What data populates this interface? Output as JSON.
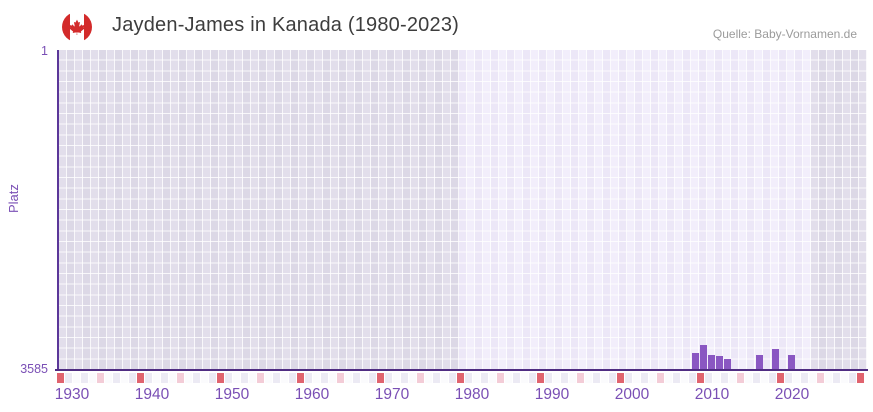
{
  "header": {
    "title": "Jayden-James in Kanada (1980-2023)",
    "source": "Quelle: Baby-Vornamen.de",
    "flag_icon": "canada-flag"
  },
  "chart_data": {
    "type": "bar",
    "title": "Jayden-James in Kanada (1980-2023)",
    "xlabel": "",
    "ylabel": "Platz",
    "y_axis": {
      "tick_labels": [
        "1",
        "3585"
      ],
      "best": 1,
      "worst": 3585,
      "inverted": true
    },
    "x_axis": {
      "first_year": 1930,
      "last_year": 2030,
      "tick_years": [
        1930,
        1940,
        1950,
        1960,
        1970,
        1980,
        1990,
        2000,
        2010,
        2020
      ]
    },
    "highlight_year_range": [
      1980,
      2023
    ],
    "values": [
      {
        "year": 2009,
        "platz": 3390
      },
      {
        "year": 2010,
        "platz": 3300
      },
      {
        "year": 2011,
        "platz": 3420
      },
      {
        "year": 2012,
        "platz": 3430
      },
      {
        "year": 2013,
        "platz": 3460
      },
      {
        "year": 2017,
        "platz": 3420
      },
      {
        "year": 2019,
        "platz": 3350
      },
      {
        "year": 2021,
        "platz": 3420
      }
    ],
    "legend": null,
    "grid": true
  },
  "colors": {
    "bar": "#8a57c2",
    "axis": "#4f2c82",
    "tick_text": "#7a4fb5",
    "title_text": "#3d3d3d",
    "source_text": "#9b9b9b",
    "flag_red": "#d32b2b",
    "decade_marker": "#e0636e",
    "half_decade_marker": "#f3ccd7",
    "strip_even": "#fbfbfd",
    "strip_odd": "#eceaf4"
  }
}
